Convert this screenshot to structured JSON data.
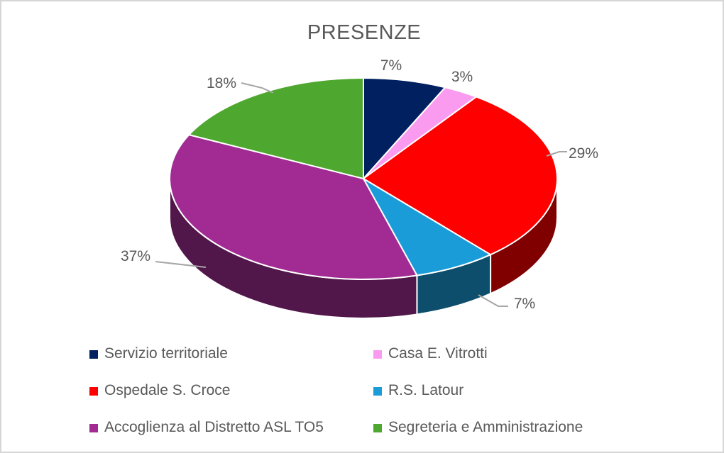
{
  "page": {
    "background": "#FFFFFF",
    "border_color": "#D6D6D6"
  },
  "chart_data": {
    "type": "pie",
    "projection": "3d",
    "title": "PRESENZE",
    "legend_position": "bottom",
    "categories": [
      "Servizio territoriale",
      "Casa E. Vitrotti",
      "Ospedale S. Croce",
      "R.S. Latour",
      "Accoglienza al Distretto ASL TO5",
      "Segreteria e Amministrazione"
    ],
    "values": [
      7,
      3,
      29,
      7,
      37,
      18
    ],
    "unit": "%",
    "data_labels": [
      "7%",
      "3%",
      "29%",
      "7%",
      "37%",
      "18%"
    ],
    "slice_colors": [
      "#002060",
      "#FB9BF0",
      "#FF0000",
      "#199CD8",
      "#A12B93",
      "#4EA72E"
    ],
    "label_color": "#595959",
    "title_color": "#595959",
    "leader_line_color": "#A6A6A6",
    "slice_border_color": "#FFFFFF"
  }
}
